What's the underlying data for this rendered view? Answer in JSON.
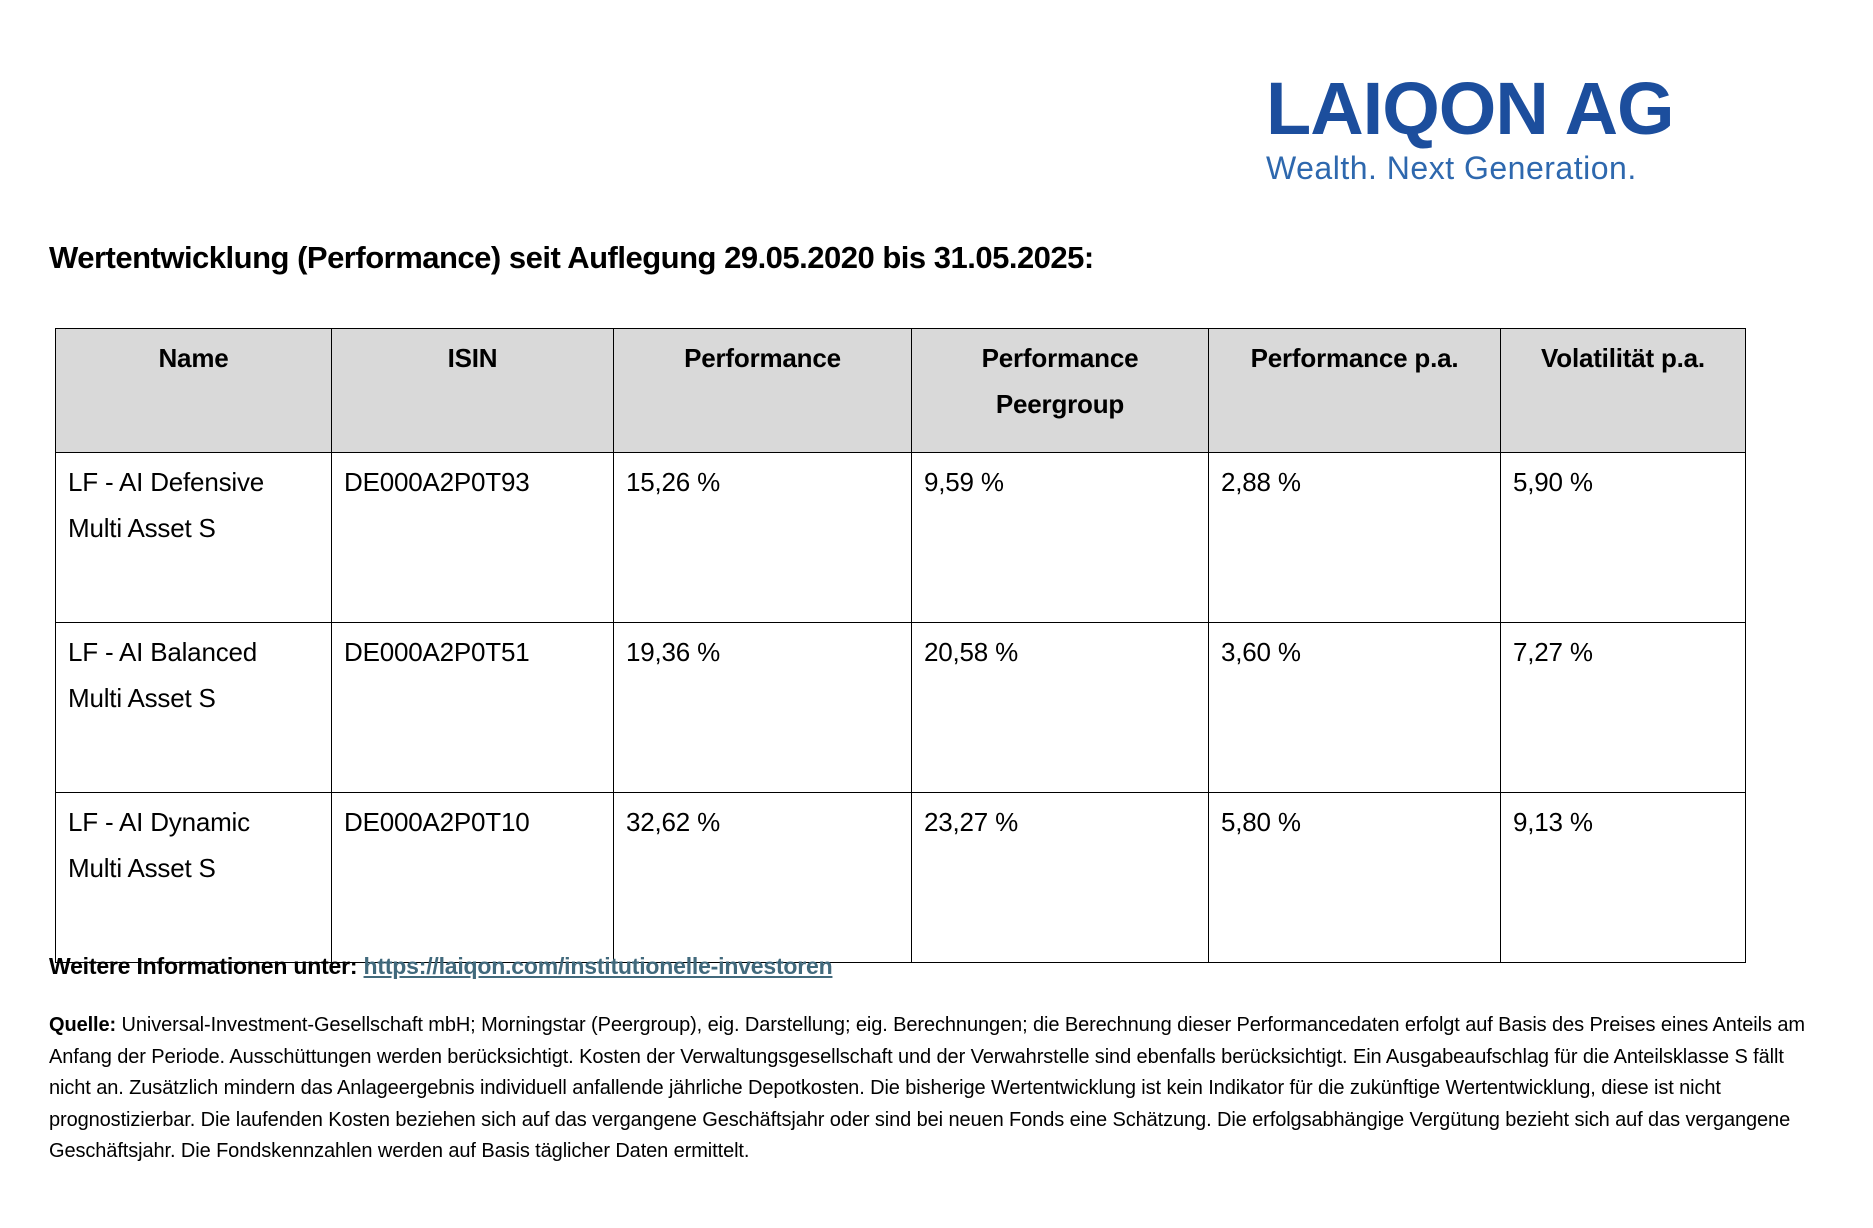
{
  "logo": {
    "wordmark": "LAIQON AG",
    "tagline": "Wealth. Next Generation.",
    "wordmark_color": "#1C4E9D",
    "tagline_color": "#2E68AE"
  },
  "page_title": "Wertentwicklung (Performance) seit Auflegung 29.05.2020 bis 31.05.2025:",
  "table": {
    "header_bg": "#D9D9D9",
    "columns": [
      "Name",
      "ISIN",
      "Performance",
      "Performance Peergroup",
      "Performance p.a.",
      "Volatilität p.a."
    ],
    "rows": [
      {
        "name_line1": "LF - AI Defensive",
        "name_line2": "Multi Asset S",
        "isin": "DE000A2P0T93",
        "performance": "15,26 %",
        "performance_peergroup": "9,59 %",
        "performance_pa": "2,88 %",
        "volatility_pa": "5,90 %"
      },
      {
        "name_line1": "LF - AI Balanced",
        "name_line2": "Multi Asset S",
        "isin": "DE000A2P0T51",
        "performance": "19,36 %",
        "performance_peergroup": "20,58 %",
        "performance_pa": "3,60 %",
        "volatility_pa": "7,27 %"
      },
      {
        "name_line1": "LF - AI Dynamic",
        "name_line2": "Multi Asset S",
        "isin": "DE000A2P0T10",
        "performance": "32,62 %",
        "performance_peergroup": "23,27 %",
        "performance_pa": "5,80 %",
        "volatility_pa": "9,13 %"
      }
    ]
  },
  "more_info": {
    "label": "Weitere Informationen unter: ",
    "link_text": "https://laiqon.com/institutionelle-investoren",
    "link_color": "#41697C"
  },
  "source_note": {
    "label": "Quelle:",
    "text": " Universal-Investment-Gesellschaft mbH; Morningstar (Peergroup), eig. Darstellung; eig. Berechnungen; die Berechnung dieser Performancedaten erfolgt auf Basis des Preises eines Anteils am Anfang der Periode. Ausschüttungen werden berücksichtigt. Kosten der Verwaltungsgesellschaft und der Verwahrstelle sind ebenfalls berücksichtigt. Ein Ausgabeaufschlag für die Anteilsklasse S fällt nicht an. Zusätzlich mindern das Anlageergebnis individuell anfallende jährliche Depotkosten. Die bisherige Wertentwicklung ist kein Indikator für die zukünftige Wertentwicklung, diese ist nicht prognostizierbar. Die laufenden Kosten beziehen sich auf das vergangene Geschäftsjahr oder sind bei neuen Fonds eine Schätzung. Die erfolgsabhängige Vergütung bezieht sich auf das vergangene Geschäftsjahr. Die Fondskennzahlen werden auf Basis täglicher Daten ermittelt."
  }
}
